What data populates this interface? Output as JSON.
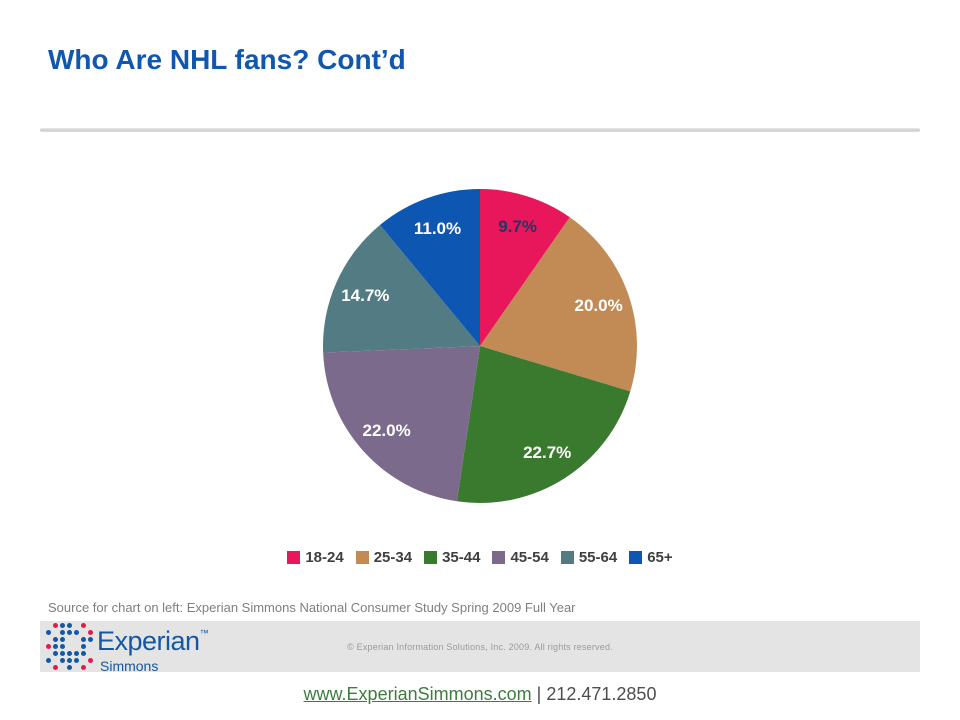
{
  "slide": {
    "title": "Who Are NHL fans? Cont’d",
    "title_color": "#1157AE"
  },
  "chart_data": {
    "type": "pie",
    "title": "",
    "start_angle_deg": 0,
    "direction": "clockwise",
    "legend_position": "bottom",
    "categories": [
      "18-24",
      "25-34",
      "35-44",
      "45-54",
      "55-64",
      "65+"
    ],
    "values": [
      9.7,
      20.0,
      22.7,
      22.0,
      14.7,
      11.0
    ],
    "slices": [
      {
        "label": "18-24",
        "value": 9.7,
        "display": "9.7%",
        "color": "#E8175C",
        "label_color": "#1F3864"
      },
      {
        "label": "25-34",
        "value": 20.0,
        "display": "20.0%",
        "color": "#C28B55",
        "label_color": "#FFFFFF"
      },
      {
        "label": "35-44",
        "value": 22.7,
        "display": "22.7%",
        "color": "#3A7A2F",
        "label_color": "#FFFFFF"
      },
      {
        "label": "45-54",
        "value": 22.0,
        "display": "22.0%",
        "color": "#7B6A8C",
        "label_color": "#FFFFFF"
      },
      {
        "label": "55-64",
        "value": 14.7,
        "display": "14.7%",
        "color": "#527B84",
        "label_color": "#FFFFFF"
      },
      {
        "label": "65+",
        "value": 11.0,
        "display": "11.0%",
        "color": "#0D57B2",
        "label_color": "#FFFFFF"
      }
    ]
  },
  "source_note": "Source for chart on left: Experian Simmons National Consumer Study Spring 2009 Full Year",
  "footer": {
    "logo_primary": "Experian",
    "logo_tm": "™",
    "logo_secondary": "Simmons",
    "copyright": "© Experian Information Solutions, Inc. 2009.  All rights reserved.",
    "logo_blue": "#1358A6",
    "logo_red": "#E31B4C",
    "logo_dot_pattern": [
      ".RBB.R.",
      "B.BBB.R",
      ".BB..BB",
      "RBB..B.",
      ".BBBBB.",
      "B.BBB.R",
      ".R.B.R."
    ]
  },
  "bottom_bar": {
    "link": "www.ExperianSimmons.com",
    "separator": "|",
    "phone": "212.471.2850"
  }
}
